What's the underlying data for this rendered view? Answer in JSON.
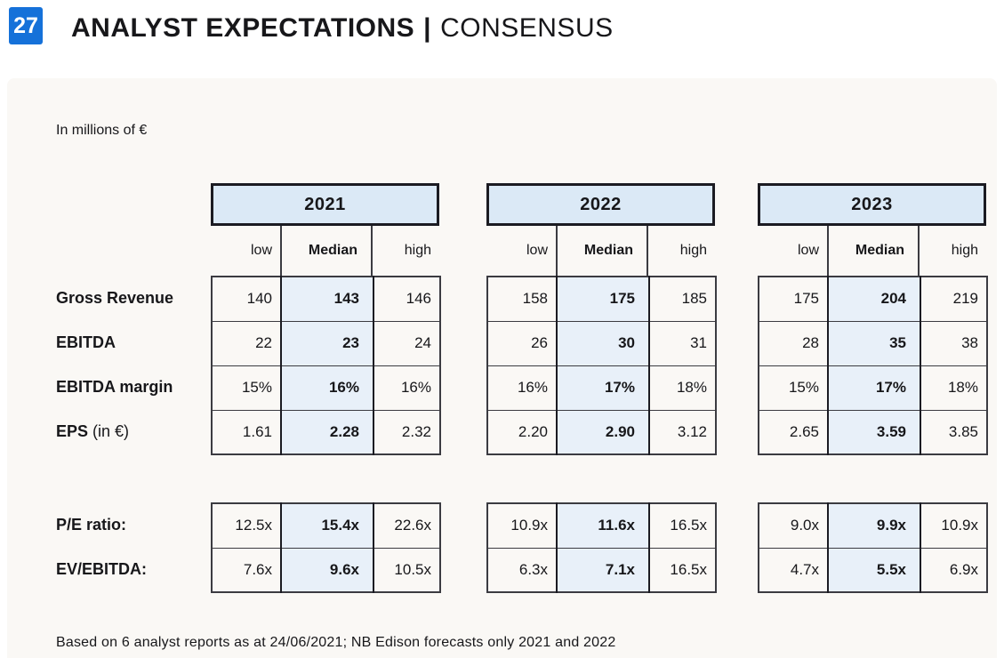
{
  "header": {
    "slide_number": "27",
    "title": "ANALYST EXPECTATIONS",
    "separator": "|",
    "subtitle": "CONSENSUS"
  },
  "card": {
    "units_note": "In millions of €",
    "footnote": "Based on 6 analyst reports as at 24/06/2021; NB Edison forecasts only 2021 and 2022"
  },
  "cols": [
    "low",
    "Median",
    "high"
  ],
  "metrics": [
    {
      "label": "Gross Revenue",
      "suffix": ""
    },
    {
      "label": "EBITDA",
      "suffix": ""
    },
    {
      "label": "EBITDA margin",
      "suffix": ""
    },
    {
      "label": "EPS",
      "suffix": "(in €)"
    }
  ],
  "ratio_labels": [
    "P/E ratio:",
    "EV/EBITDA:"
  ],
  "tables": [
    {
      "year": "2021",
      "values": [
        [
          "140",
          "143",
          "146"
        ],
        [
          "22",
          "23",
          "24"
        ],
        [
          "15%",
          "16%",
          "16%"
        ],
        [
          "1.61",
          "2.28",
          "2.32"
        ]
      ],
      "ratios": [
        [
          "12.5x",
          "15.4x",
          "22.6x"
        ],
        [
          "7.6x",
          "9.6x",
          "10.5x"
        ]
      ]
    },
    {
      "year": "2022",
      "values": [
        [
          "158",
          "175",
          "185"
        ],
        [
          "26",
          "30",
          "31"
        ],
        [
          "16%",
          "17%",
          "18%"
        ],
        [
          "2.20",
          "2.90",
          "3.12"
        ]
      ],
      "ratios": [
        [
          "10.9x",
          "11.6x",
          "16.5x"
        ],
        [
          "6.3x",
          "7.1x",
          "16.5x"
        ]
      ]
    },
    {
      "year": "2023",
      "values": [
        [
          "175",
          "204",
          "219"
        ],
        [
          "28",
          "35",
          "38"
        ],
        [
          "15%",
          "17%",
          "18%"
        ],
        [
          "2.65",
          "3.59",
          "3.85"
        ]
      ],
      "ratios": [
        [
          "9.0x",
          "9.9x",
          "10.9x"
        ],
        [
          "4.7x",
          "5.5x",
          "6.9x"
        ]
      ]
    }
  ],
  "colors": {
    "badge_blue": "#1571D9",
    "year_fill": "#DBE9F6",
    "median_fill": "#E8F0F9",
    "border_dark": "#1B1B22",
    "border_grid": "#3B3B41",
    "card_bg": "#FAF8F5",
    "text_dark": "#17171A"
  }
}
